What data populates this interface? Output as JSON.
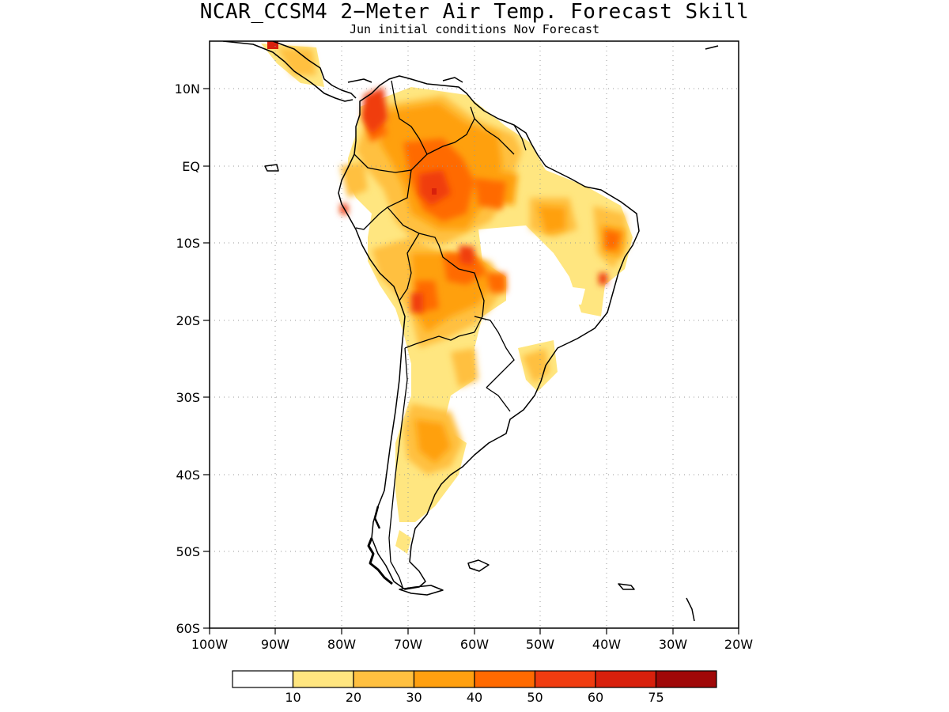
{
  "title": "NCAR_CCSM4 2−Meter Air Temp. Forecast Skill",
  "subtitle": "Jun initial conditions  Nov Forecast",
  "lat_ticks": [
    "10N",
    "EQ",
    "10S",
    "20S",
    "30S",
    "40S",
    "50S",
    "60S"
  ],
  "lon_ticks": [
    "100W",
    "90W",
    "80W",
    "70W",
    "60W",
    "50W",
    "40W",
    "30W",
    "20W"
  ],
  "colorbar": {
    "labels": [
      "10",
      "20",
      "30",
      "40",
      "50",
      "60",
      "75"
    ],
    "colors": [
      "#ffffff",
      "#ffe680",
      "#ffc040",
      "#ffa010",
      "#ff6a00",
      "#f03c10",
      "#d8200c",
      "#a00808"
    ]
  },
  "chart_data": {
    "type": "heatmap",
    "title": "NCAR_CCSM4 2−Meter Air Temp. Forecast Skill",
    "subtitle": "Jun initial conditions  Nov Forecast",
    "region": "South America",
    "lon_range": [
      -100,
      -20
    ],
    "lat_range": [
      -60,
      16
    ],
    "grid": "dotted",
    "scale_bins": [
      0,
      10,
      20,
      30,
      40,
      50,
      60,
      75
    ],
    "regions": [
      {
        "area": "Colombia / Venezuela",
        "level": [
          50,
          60
        ]
      },
      {
        "area": "Western Amazon",
        "level": [
          50,
          60
        ]
      },
      {
        "area": "Southern Amazon / Bolivia",
        "level": [
          50,
          60
        ]
      },
      {
        "area": "Northeast Brazil",
        "level": [
          40,
          50
        ]
      },
      {
        "area": "Ecuador coast",
        "level": [
          50,
          60
        ]
      },
      {
        "area": "Chaco / northern Argentina",
        "level": [
          20,
          40
        ]
      },
      {
        "area": "Central Argentina",
        "level": [
          30,
          40
        ]
      },
      {
        "area": "Patagonia",
        "level": [
          20,
          30
        ]
      },
      {
        "area": "Southeast Brazil",
        "level": [
          20,
          40
        ]
      },
      {
        "area": "Central America",
        "level": [
          30,
          60
        ]
      }
    ]
  }
}
